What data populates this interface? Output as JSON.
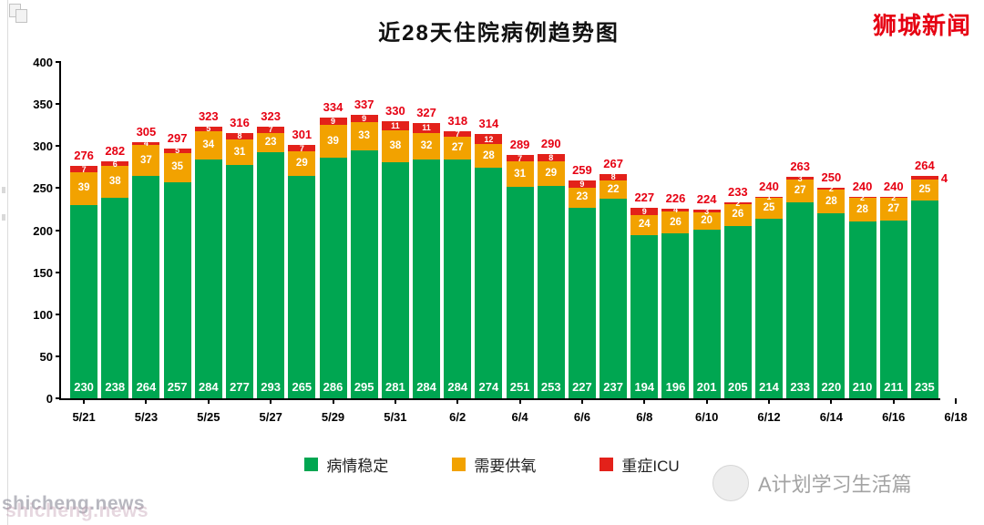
{
  "page": {
    "brand_top_right": "狮城新闻",
    "brand_bottom_right": "A计划学习生活篇",
    "watermark": "shicheng.news"
  },
  "chart_data": {
    "type": "bar",
    "stacked": true,
    "title": "近28天住院病例趋势图",
    "legend_position": "bottom",
    "grid": false,
    "ylim": [
      0,
      400
    ],
    "yticks": [
      0,
      50,
      100,
      150,
      200,
      250,
      300,
      350,
      400
    ],
    "categories": [
      "5/21",
      "5/22",
      "5/23",
      "5/24",
      "5/25",
      "5/26",
      "5/27",
      "5/28",
      "5/29",
      "5/30",
      "5/31",
      "6/1",
      "6/2",
      "6/3",
      "6/4",
      "6/5",
      "6/6",
      "6/7",
      "6/8",
      "6/9",
      "6/10",
      "6/11",
      "6/12",
      "6/13",
      "6/14",
      "6/15",
      "6/16",
      "6/17"
    ],
    "x_tick_labels": [
      "5/21",
      "5/23",
      "5/25",
      "5/27",
      "5/29",
      "5/31",
      "6/2",
      "6/4",
      "6/6",
      "6/8",
      "6/10",
      "6/12",
      "6/14",
      "6/16",
      "6/18"
    ],
    "series": [
      {
        "name": "病情稳定",
        "color": "#00a651",
        "values": [
          230,
          238,
          264,
          257,
          284,
          277,
          293,
          265,
          286,
          295,
          281,
          284,
          284,
          274,
          251,
          253,
          227,
          237,
          194,
          196,
          201,
          205,
          214,
          233,
          220,
          210,
          211,
          235
        ]
      },
      {
        "name": "需要供氧",
        "color": "#f2a200",
        "values": [
          39,
          38,
          37,
          35,
          34,
          31,
          23,
          29,
          39,
          33,
          38,
          32,
          27,
          28,
          31,
          29,
          23,
          22,
          24,
          26,
          20,
          26,
          25,
          27,
          28,
          28,
          27,
          25
        ]
      },
      {
        "name": "重症ICU",
        "color": "#e3211a",
        "values": [
          7,
          6,
          4,
          5,
          5,
          8,
          7,
          7,
          9,
          9,
          11,
          11,
          7,
          12,
          7,
          8,
          9,
          8,
          9,
          4,
          3,
          2,
          1,
          3,
          2,
          2,
          2,
          4
        ]
      }
    ],
    "totals": [
      276,
      282,
      305,
      297,
      323,
      316,
      323,
      301,
      334,
      337,
      330,
      327,
      318,
      314,
      289,
      290,
      259,
      267,
      227,
      226,
      224,
      233,
      240,
      263,
      250,
      240,
      240,
      264
    ],
    "total_label_color": "#e60012",
    "icu_label_outside_indexes": [
      27
    ]
  }
}
